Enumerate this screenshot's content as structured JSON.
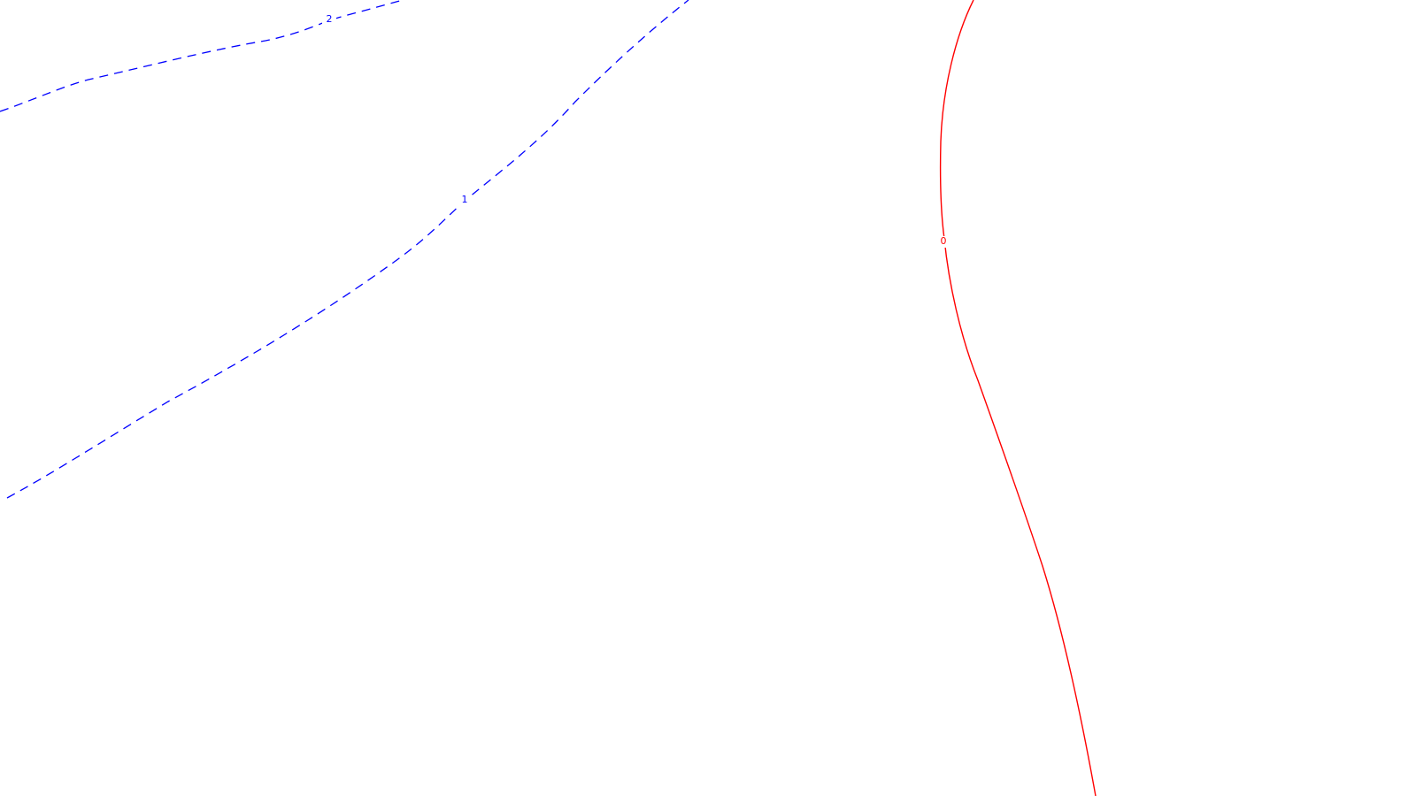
{
  "map": {
    "background_color": "#ffffff",
    "contours": [
      {
        "id": "contour-2",
        "label": "2",
        "color": "#0000ff",
        "style": "dashed"
      },
      {
        "id": "contour-1",
        "label": "1",
        "color": "#0000ff",
        "style": "dashed"
      },
      {
        "id": "contour-0",
        "label": "0",
        "color": "#ff0000",
        "style": "solid"
      }
    ]
  }
}
